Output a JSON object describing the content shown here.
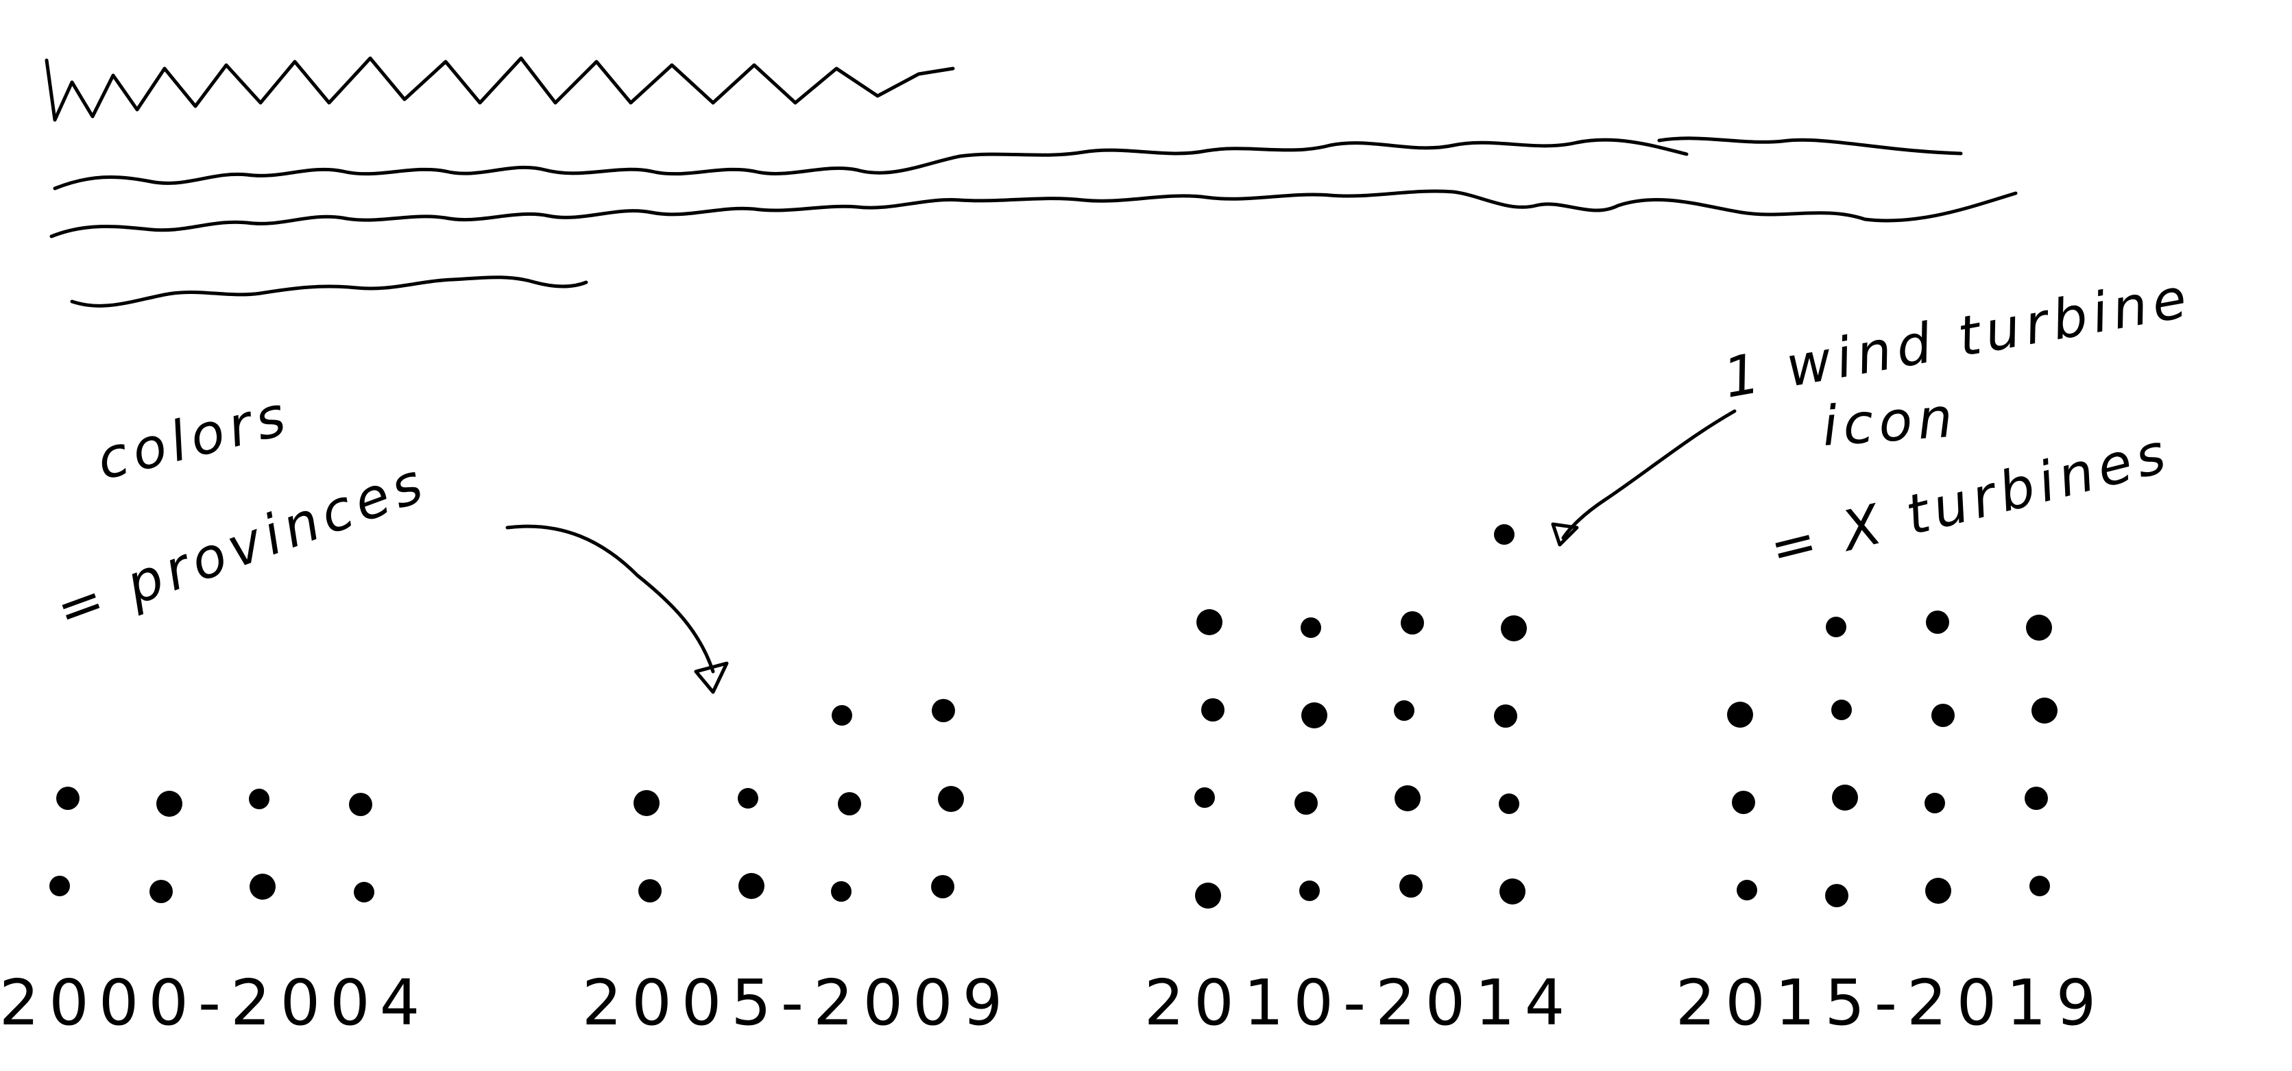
{
  "title_placeholder": {
    "description_rows": 5
  },
  "annotations": {
    "colors_line1": "colors",
    "colors_line2": "= provinces",
    "icon_line1": "1 wind turbine",
    "icon_line2": "icon",
    "icon_line3": "= X turbines"
  },
  "chart_data": {
    "type": "table",
    "title": "",
    "encoding": "pictogram: each dot = 1 wind turbine icon (= X turbines); colors = provinces",
    "categories": [
      "2000-2004",
      "2005-2009",
      "2010-2014",
      "2015-2019"
    ],
    "series": [
      {
        "name": "icons",
        "values": [
          8,
          10,
          17,
          15
        ]
      }
    ]
  }
}
